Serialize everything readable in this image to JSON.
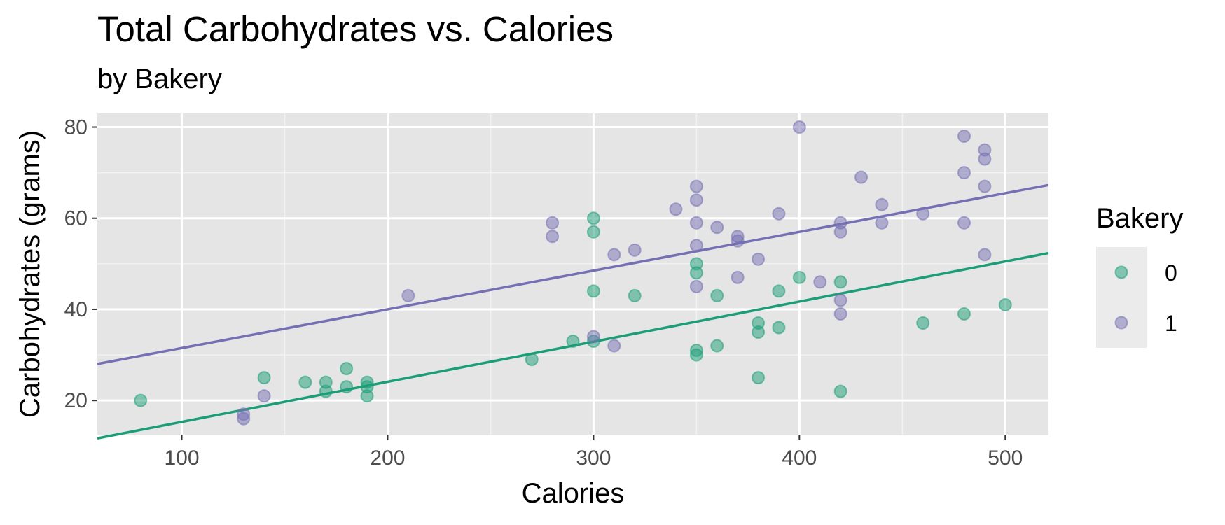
{
  "chart_data": {
    "type": "scatter",
    "title": "Total Carbohydrates vs. Calories",
    "subtitle": "by Bakery",
    "xlabel": "Calories",
    "ylabel": "Carbohydrates (grams)",
    "xlim": [
      59,
      521
    ],
    "ylim": [
      12.5,
      83
    ],
    "x_ticks": [
      100,
      200,
      300,
      400,
      500
    ],
    "y_ticks": [
      20,
      40,
      60,
      80
    ],
    "grid": true,
    "legend": {
      "title": "Bakery",
      "position": "right"
    },
    "series": [
      {
        "name": "0",
        "color": "#1b9e77",
        "points": [
          [
            80,
            20
          ],
          [
            140,
            25
          ],
          [
            160,
            24
          ],
          [
            170,
            24
          ],
          [
            170,
            22
          ],
          [
            180,
            27
          ],
          [
            180,
            23
          ],
          [
            190,
            24
          ],
          [
            190,
            23
          ],
          [
            190,
            21
          ],
          [
            270,
            29
          ],
          [
            290,
            33
          ],
          [
            300,
            60
          ],
          [
            300,
            57
          ],
          [
            300,
            44
          ],
          [
            300,
            33
          ],
          [
            320,
            43
          ],
          [
            350,
            50
          ],
          [
            350,
            48
          ],
          [
            350,
            31
          ],
          [
            350,
            30
          ],
          [
            360,
            43
          ],
          [
            360,
            32
          ],
          [
            380,
            37
          ],
          [
            380,
            35
          ],
          [
            380,
            25
          ],
          [
            390,
            44
          ],
          [
            390,
            36
          ],
          [
            400,
            47
          ],
          [
            420,
            46
          ],
          [
            420,
            22
          ],
          [
            460,
            37
          ],
          [
            480,
            39
          ],
          [
            500,
            41
          ]
        ],
        "fit": {
          "intercept": 6.5,
          "slope": 0.088
        }
      },
      {
        "name": "1",
        "color": "#7570b3",
        "points": [
          [
            130,
            17
          ],
          [
            130,
            16
          ],
          [
            140,
            21
          ],
          [
            210,
            43
          ],
          [
            280,
            59
          ],
          [
            280,
            56
          ],
          [
            300,
            34
          ],
          [
            310,
            52
          ],
          [
            310,
            32
          ],
          [
            320,
            53
          ],
          [
            340,
            62
          ],
          [
            350,
            67
          ],
          [
            350,
            64
          ],
          [
            350,
            59
          ],
          [
            350,
            54
          ],
          [
            350,
            45
          ],
          [
            360,
            58
          ],
          [
            370,
            56
          ],
          [
            370,
            55
          ],
          [
            370,
            47
          ],
          [
            380,
            51
          ],
          [
            390,
            61
          ],
          [
            400,
            80
          ],
          [
            410,
            46
          ],
          [
            420,
            59
          ],
          [
            420,
            57
          ],
          [
            420,
            42
          ],
          [
            420,
            39
          ],
          [
            430,
            69
          ],
          [
            440,
            63
          ],
          [
            440,
            59
          ],
          [
            460,
            61
          ],
          [
            480,
            78
          ],
          [
            480,
            70
          ],
          [
            480,
            59
          ],
          [
            490,
            75
          ],
          [
            490,
            73
          ],
          [
            490,
            67
          ],
          [
            490,
            52
          ]
        ],
        "fit": {
          "intercept": 23,
          "slope": 0.085
        }
      }
    ]
  }
}
